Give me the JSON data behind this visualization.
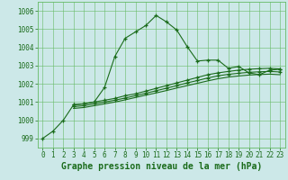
{
  "bg_color": "#cce8e8",
  "grid_color": "#66bb66",
  "line_color": "#1a6b1a",
  "marker_color": "#1a6b1a",
  "title": "Graphe pression niveau de la mer (hPa)",
  "ylim": [
    998.5,
    1006.5
  ],
  "yticks": [
    999,
    1000,
    1001,
    1002,
    1003,
    1004,
    1005,
    1006
  ],
  "xlim": [
    -0.5,
    23.5
  ],
  "xticks": [
    0,
    1,
    2,
    3,
    4,
    5,
    6,
    7,
    8,
    9,
    10,
    11,
    12,
    13,
    14,
    15,
    16,
    17,
    18,
    19,
    20,
    21,
    22,
    23
  ],
  "series1_x": [
    0,
    1,
    2,
    3,
    4,
    5,
    6,
    7,
    8,
    9,
    10,
    11,
    12,
    13,
    14,
    15,
    16,
    17,
    18,
    19,
    20,
    21,
    22,
    23
  ],
  "series1_y": [
    999.0,
    999.4,
    1000.0,
    1000.85,
    1000.9,
    1001.0,
    1001.8,
    1003.5,
    1004.5,
    1004.85,
    1005.2,
    1005.75,
    1005.4,
    1004.95,
    1004.05,
    1003.25,
    1003.3,
    1003.3,
    1002.85,
    1002.95,
    1002.6,
    1002.5,
    1002.75,
    1002.8
  ],
  "series2_x": [
    3,
    4,
    5,
    6,
    7,
    8,
    9,
    10,
    11,
    12,
    13,
    14,
    15,
    16,
    17,
    18,
    19,
    20,
    21,
    22,
    23
  ],
  "series2_y": [
    1000.85,
    1000.9,
    1001.0,
    1001.1,
    1001.2,
    1001.35,
    1001.45,
    1001.6,
    1001.75,
    1001.9,
    1002.05,
    1002.2,
    1002.35,
    1002.5,
    1002.6,
    1002.68,
    1002.75,
    1002.8,
    1002.83,
    1002.85,
    1002.82
  ],
  "series3_x": [
    3,
    4,
    5,
    6,
    7,
    8,
    9,
    10,
    11,
    12,
    13,
    14,
    15,
    16,
    17,
    18,
    19,
    20,
    21,
    22,
    23
  ],
  "series3_y": [
    1000.75,
    1000.8,
    1000.9,
    1001.0,
    1001.1,
    1001.22,
    1001.35,
    1001.48,
    1001.62,
    1001.76,
    1001.9,
    1002.05,
    1002.18,
    1002.32,
    1002.44,
    1002.52,
    1002.58,
    1002.63,
    1002.66,
    1002.68,
    1002.65
  ],
  "series4_x": [
    3,
    4,
    5,
    6,
    7,
    8,
    9,
    10,
    11,
    12,
    13,
    14,
    15,
    16,
    17,
    18,
    19,
    20,
    21,
    22,
    23
  ],
  "series4_y": [
    1000.65,
    1000.7,
    1000.8,
    1000.9,
    1001.0,
    1001.12,
    1001.25,
    1001.38,
    1001.5,
    1001.63,
    1001.77,
    1001.9,
    1002.03,
    1002.16,
    1002.28,
    1002.37,
    1002.43,
    1002.48,
    1002.51,
    1002.53,
    1002.5
  ],
  "title_fontsize": 7.0,
  "tick_fontsize": 5.5
}
